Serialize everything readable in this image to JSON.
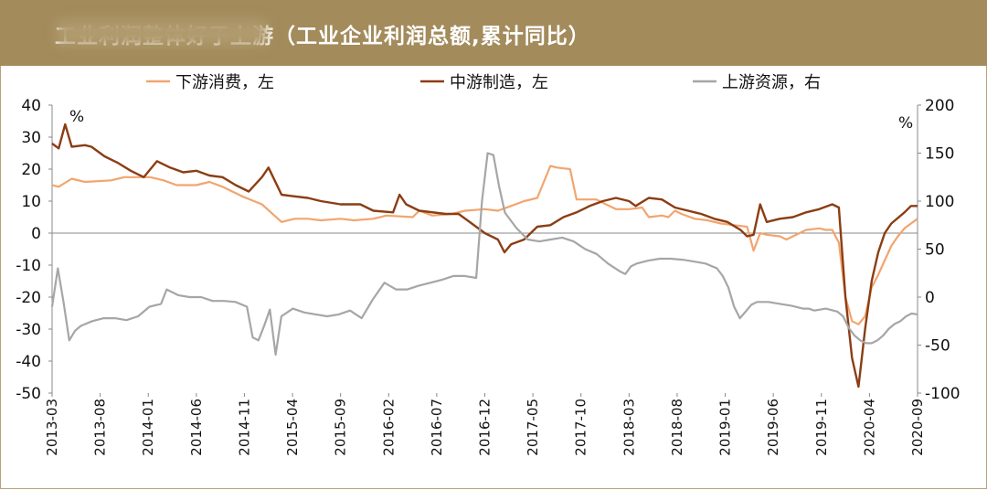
{
  "title": "工业利润整体好于上游（工业企业利润总额,累计同比）",
  "colors": {
    "title_bg": "#a38b5c",
    "downstream": "#f2a56e",
    "midstream": "#8b3d14",
    "upstream": "#a6a6a6"
  },
  "chart_data": {
    "type": "line",
    "left_unit": "%",
    "right_unit": "%",
    "left_axis": {
      "min": -50,
      "max": 40,
      "ticks": [
        40,
        30,
        20,
        10,
        0,
        -10,
        -20,
        -30,
        -40,
        -50
      ]
    },
    "right_axis": {
      "min": -100,
      "max": 200,
      "ticks": [
        200,
        150,
        100,
        50,
        0,
        -50,
        -100
      ]
    },
    "x_labels": [
      "2013-03",
      "2013-08",
      "2014-01",
      "2014-06",
      "2014-11",
      "2015-04",
      "2015-09",
      "2016-02",
      "2016-07",
      "2016-12",
      "2017-05",
      "2017-10",
      "2018-03",
      "2018-08",
      "2019-01",
      "2019-06",
      "2019-11",
      "2020-04",
      "2020-09"
    ],
    "legend": [
      "下游消费，左",
      "中游制造，左",
      "上游资源，右"
    ],
    "series": [
      {
        "name": "下游消费，左",
        "axis": "left",
        "color": "#f2a56e",
        "values": [
          [
            0,
            15
          ],
          [
            1,
            14.5
          ],
          [
            3,
            17
          ],
          [
            5,
            16
          ],
          [
            9,
            16.5
          ],
          [
            11,
            17.5
          ],
          [
            15,
            17.5
          ],
          [
            17,
            16.5
          ],
          [
            19,
            15
          ],
          [
            22,
            15
          ],
          [
            24,
            16
          ],
          [
            26,
            14.5
          ],
          [
            29,
            11.5
          ],
          [
            32,
            9
          ],
          [
            35,
            3.5
          ],
          [
            37,
            4.5
          ],
          [
            39,
            4.5
          ],
          [
            41,
            4
          ],
          [
            44,
            4.5
          ],
          [
            46,
            4
          ],
          [
            49,
            4.5
          ],
          [
            51,
            5.5
          ],
          [
            55,
            5
          ],
          [
            56,
            7
          ],
          [
            58,
            5.5
          ],
          [
            61,
            6
          ],
          [
            63,
            7
          ],
          [
            66,
            7.5
          ],
          [
            68,
            7
          ],
          [
            70,
            8.5
          ],
          [
            72,
            10
          ],
          [
            74,
            11
          ],
          [
            76,
            21
          ],
          [
            77,
            20.5
          ],
          [
            79,
            20
          ],
          [
            80,
            10.5
          ],
          [
            83,
            10.5
          ],
          [
            84,
            9.5
          ],
          [
            86,
            7.5
          ],
          [
            88,
            7.5
          ],
          [
            90,
            8
          ],
          [
            91,
            5
          ],
          [
            93,
            5.5
          ],
          [
            94,
            5
          ],
          [
            95,
            7
          ],
          [
            96,
            6
          ],
          [
            98,
            4.5
          ],
          [
            100,
            4
          ],
          [
            102,
            3
          ],
          [
            104,
            2.5
          ],
          [
            106,
            2
          ],
          [
            107,
            -5.5
          ],
          [
            108,
            0
          ],
          [
            109,
            -0.5
          ],
          [
            111,
            -1
          ],
          [
            112,
            -2
          ],
          [
            113,
            -1
          ],
          [
            115,
            1
          ],
          [
            117,
            1.5
          ],
          [
            118,
            1
          ],
          [
            119,
            1
          ],
          [
            120,
            -3
          ],
          [
            121,
            -20
          ],
          [
            122,
            -27.5
          ],
          [
            123,
            -28.5
          ],
          [
            124,
            -26
          ],
          [
            125,
            -17
          ],
          [
            126,
            -13
          ],
          [
            128,
            -4
          ],
          [
            129,
            -1
          ],
          [
            130,
            1.5
          ],
          [
            131,
            3
          ],
          [
            132,
            4.5
          ]
        ]
      },
      {
        "name": "中游制造，左",
        "axis": "left",
        "color": "#8b3d14",
        "values": [
          [
            0,
            28
          ],
          [
            1,
            26.5
          ],
          [
            2,
            34
          ],
          [
            3,
            27
          ],
          [
            5,
            27.5
          ],
          [
            6,
            27
          ],
          [
            8,
            24
          ],
          [
            10,
            22
          ],
          [
            12,
            19.5
          ],
          [
            14,
            17.5
          ],
          [
            16,
            22.5
          ],
          [
            18,
            20.5
          ],
          [
            20,
            19
          ],
          [
            22,
            19.5
          ],
          [
            24,
            18
          ],
          [
            26,
            17.5
          ],
          [
            28,
            15
          ],
          [
            30,
            13
          ],
          [
            32,
            17.5
          ],
          [
            33,
            20.5
          ],
          [
            35,
            12
          ],
          [
            37,
            11.5
          ],
          [
            39,
            11
          ],
          [
            41,
            10
          ],
          [
            44,
            9
          ],
          [
            47,
            9
          ],
          [
            49,
            7
          ],
          [
            52,
            6.5
          ],
          [
            53,
            12
          ],
          [
            54,
            9
          ],
          [
            56,
            7
          ],
          [
            60,
            6
          ],
          [
            62,
            6
          ],
          [
            64,
            3
          ],
          [
            66,
            0
          ],
          [
            68,
            -2
          ],
          [
            69,
            -6
          ],
          [
            70,
            -3.5
          ],
          [
            72,
            -2
          ],
          [
            74,
            2
          ],
          [
            76,
            2.5
          ],
          [
            78,
            5
          ],
          [
            80,
            6.5
          ],
          [
            82,
            8.5
          ],
          [
            84,
            10
          ],
          [
            86,
            11
          ],
          [
            88,
            10
          ],
          [
            89,
            8.5
          ],
          [
            91,
            11
          ],
          [
            93,
            10.5
          ],
          [
            95,
            8
          ],
          [
            97,
            7
          ],
          [
            99,
            6
          ],
          [
            101,
            4.5
          ],
          [
            103,
            3.5
          ],
          [
            105,
            1
          ],
          [
            106,
            -1
          ],
          [
            107,
            -0.5
          ],
          [
            108,
            9
          ],
          [
            109,
            3.5
          ],
          [
            111,
            4.5
          ],
          [
            113,
            5
          ],
          [
            115,
            6.5
          ],
          [
            117,
            7.5
          ],
          [
            119,
            9
          ],
          [
            120,
            8
          ],
          [
            121,
            -20
          ],
          [
            122,
            -39
          ],
          [
            123,
            -48
          ],
          [
            124,
            -30
          ],
          [
            125,
            -15
          ],
          [
            126,
            -6
          ],
          [
            127,
            0
          ],
          [
            128,
            3
          ],
          [
            130,
            6.5
          ],
          [
            131,
            8.5
          ],
          [
            132,
            8.5
          ]
        ]
      },
      {
        "name": "上游资源，右",
        "axis": "right",
        "color": "#a6a6a6",
        "values": [
          [
            0,
            -10
          ],
          [
            1,
            30
          ],
          [
            2,
            -5
          ],
          [
            3,
            -45
          ],
          [
            4,
            -35
          ],
          [
            5,
            -30
          ],
          [
            7,
            -25
          ],
          [
            9,
            -22
          ],
          [
            11,
            -22
          ],
          [
            13,
            -24
          ],
          [
            15,
            -20
          ],
          [
            17,
            -10
          ],
          [
            19,
            -7
          ],
          [
            20,
            8
          ],
          [
            22,
            2
          ],
          [
            24,
            0
          ],
          [
            26,
            0
          ],
          [
            28,
            -4
          ],
          [
            30,
            -4
          ],
          [
            32,
            -5
          ],
          [
            34,
            -10
          ],
          [
            35,
            -42
          ],
          [
            36,
            -45
          ],
          [
            37,
            -30
          ],
          [
            38,
            -13
          ],
          [
            39,
            -60
          ],
          [
            40,
            -20
          ],
          [
            42,
            -12
          ],
          [
            44,
            -16
          ],
          [
            46,
            -18
          ],
          [
            48,
            -20
          ],
          [
            50,
            -18
          ],
          [
            52,
            -14
          ],
          [
            53,
            -18
          ],
          [
            54,
            -22
          ],
          [
            56,
            -2
          ],
          [
            58,
            15
          ],
          [
            60,
            8
          ],
          [
            62,
            8
          ],
          [
            64,
            12
          ],
          [
            66,
            15
          ],
          [
            68,
            18
          ],
          [
            70,
            22
          ],
          [
            72,
            22
          ],
          [
            74,
            20
          ],
          [
            75,
            100
          ],
          [
            76,
            150
          ],
          [
            77,
            148
          ],
          [
            78,
            115
          ],
          [
            79,
            88
          ],
          [
            81,
            72
          ],
          [
            83,
            60
          ],
          [
            85,
            58
          ],
          [
            87,
            60
          ],
          [
            89,
            62
          ],
          [
            91,
            58
          ],
          [
            93,
            50
          ],
          [
            95,
            45
          ],
          [
            97,
            35
          ],
          [
            99,
            27
          ],
          [
            100,
            24
          ],
          [
            101,
            32
          ],
          [
            102,
            35
          ],
          [
            104,
            38
          ],
          [
            106,
            40
          ],
          [
            108,
            40
          ],
          [
            110,
            39
          ],
          [
            112,
            37
          ],
          [
            114,
            35
          ],
          [
            116,
            30
          ],
          [
            117,
            22
          ],
          [
            118,
            10
          ],
          [
            119,
            -10
          ],
          [
            120,
            -22
          ],
          [
            121,
            -15
          ],
          [
            122,
            -8
          ],
          [
            123,
            -5
          ],
          [
            125,
            -5
          ],
          [
            127,
            -7
          ],
          [
            129,
            -9
          ],
          [
            131,
            -12
          ],
          [
            132,
            -12
          ],
          [
            133,
            -14
          ],
          [
            135,
            -12
          ],
          [
            137,
            -15
          ],
          [
            138,
            -20
          ],
          [
            139,
            -32
          ],
          [
            140,
            -40
          ],
          [
            141,
            -45
          ],
          [
            142,
            -48
          ],
          [
            143,
            -48
          ],
          [
            144,
            -45
          ],
          [
            145,
            -40
          ],
          [
            146,
            -33
          ],
          [
            147,
            -28
          ],
          [
            148,
            -25
          ],
          [
            149,
            -20
          ],
          [
            150,
            -17
          ],
          [
            151,
            -18
          ]
        ]
      }
    ]
  }
}
